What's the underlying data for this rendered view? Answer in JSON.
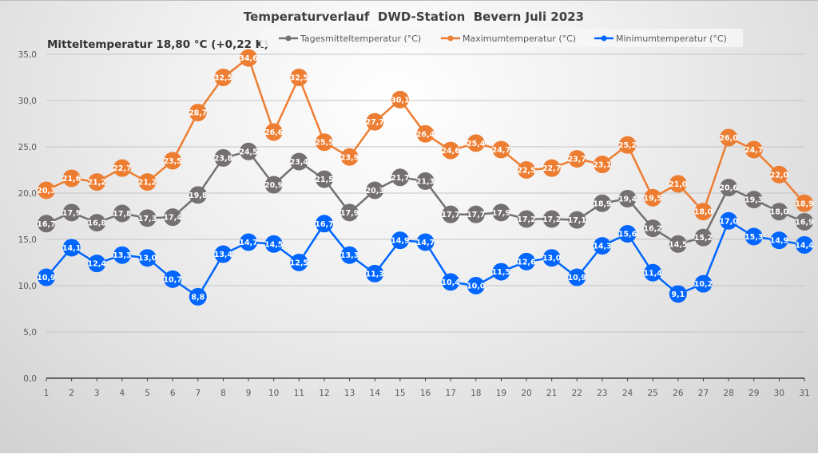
{
  "chart_data": {
    "type": "line",
    "title": "Temperaturverlauf  DWD-Station  Bevern Juli 2023",
    "subtitle": "Mitteltemperatur 18,80 °C (+0,22 K)",
    "xlabel": "",
    "ylabel": "",
    "ylim": [
      0,
      35
    ],
    "yticks": [
      "0,0",
      "5,0",
      "10,0",
      "15,0",
      "20,0",
      "25,0",
      "30,0",
      "35,0"
    ],
    "ytick_values": [
      0,
      5,
      10,
      15,
      20,
      25,
      30,
      35
    ],
    "grid": true,
    "legend_position": "top",
    "x": [
      1,
      2,
      3,
      4,
      5,
      6,
      7,
      8,
      9,
      10,
      11,
      12,
      13,
      14,
      15,
      16,
      17,
      18,
      19,
      20,
      21,
      22,
      23,
      24,
      25,
      26,
      27,
      28,
      29,
      30,
      31
    ],
    "series": [
      {
        "name": "Tagesmitteltemperatur (°C)",
        "color": "#757070",
        "values": [
          16.7,
          17.9,
          16.8,
          17.8,
          17.3,
          17.4,
          19.8,
          23.8,
          24.5,
          20.9,
          23.4,
          21.5,
          17.9,
          20.3,
          21.7,
          21.3,
          17.7,
          17.7,
          17.9,
          17.2,
          17.2,
          17.1,
          18.9,
          19.4,
          16.2,
          14.5,
          15.2,
          20.6,
          19.3,
          18.0,
          16.9
        ],
        "labels": [
          "16,7",
          "17,9",
          "16,8",
          "17,8",
          "17,3",
          "17,4",
          "19,8",
          "23,8",
          "24,5",
          "20,9",
          "23,4",
          "21,5",
          "17,9",
          "20,3",
          "21,7",
          "21,3",
          "17,7",
          "17,7",
          "17,9",
          "17,2",
          "17,2",
          "17,1",
          "18,9",
          "19,4",
          "16,2",
          "14,5",
          "15,2",
          "20,6",
          "19,3",
          "18,0",
          "16,9"
        ]
      },
      {
        "name": "Maximumtemperatur (°C)",
        "color": "#ED7D31",
        "values": [
          20.3,
          21.6,
          21.2,
          22.7,
          21.2,
          23.5,
          28.7,
          32.5,
          34.6,
          26.6,
          32.5,
          25.5,
          23.9,
          27.7,
          30.1,
          26.4,
          24.6,
          25.4,
          24.7,
          22.5,
          22.7,
          23.7,
          23.1,
          25.2,
          19.5,
          21.0,
          18.0,
          26.0,
          24.7,
          22.0,
          18.9
        ],
        "labels": [
          "20,3",
          "21,6",
          "21,2",
          "22,7",
          "21,2",
          "23,5",
          "28,7",
          "32,5",
          "34,6",
          "26,6",
          "32,5",
          "25,5",
          "23,9",
          "27,7",
          "30,1",
          "26,4",
          "24,6",
          "25,4",
          "24,7",
          "22,5",
          "22,7",
          "23,7",
          "23,1",
          "25,2",
          "19,5",
          "21,0",
          "18,0",
          "26,0",
          "24,7",
          "22,0",
          "18,9"
        ]
      },
      {
        "name": "Minimumtemperatur (°C)",
        "color": "#0066FF",
        "values": [
          10.9,
          14.1,
          12.4,
          13.3,
          13.0,
          10.7,
          8.8,
          13.4,
          14.7,
          14.5,
          12.5,
          16.7,
          13.3,
          11.3,
          14.9,
          14.7,
          10.4,
          10.0,
          11.5,
          12.6,
          13.0,
          10.9,
          14.3,
          15.6,
          11.4,
          9.1,
          10.2,
          17.0,
          15.3,
          14.9,
          14.4
        ],
        "labels": [
          "10,9",
          "14,1",
          "12,4",
          "13,3",
          "13,0",
          "10,7",
          "8,8",
          "13,4",
          "14,7",
          "14,5",
          "12,5",
          "16,7",
          "13,3",
          "11,3",
          "14,9",
          "14,7",
          "10,4",
          "10,0",
          "11,5",
          "12,6",
          "13,0",
          "10,9",
          "14,3",
          "15,6",
          "11,4",
          "9,1",
          "10,2",
          "17,0",
          "15,3",
          "14,9",
          "14,4"
        ]
      }
    ]
  }
}
